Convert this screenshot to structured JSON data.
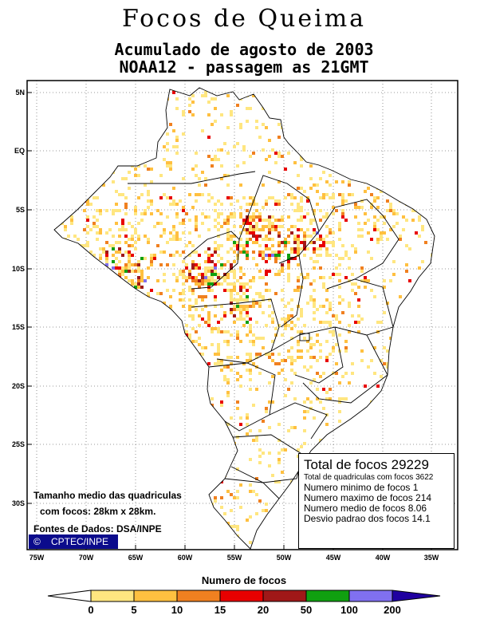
{
  "title": "Focos de Queima",
  "subtitle": "Acumulado de agosto de 2003",
  "satellite": "NOAA12 - passagem as 21GMT",
  "axes": {
    "lat_labels": [
      "5N",
      "EQ",
      "5S",
      "10S",
      "15S",
      "20S",
      "25S",
      "30S"
    ],
    "lon_labels": [
      "75W",
      "70W",
      "65W",
      "60W",
      "55W",
      "50W",
      "45W",
      "40W",
      "35W"
    ]
  },
  "stats": {
    "total": "Total de focos 29229",
    "quadriculas": "Total de quadriculas com focos 3622",
    "minimo": "Numero minimo de focos 1",
    "maximo": "Numero maximo de focos 214",
    "medio": "Numero medio de focos 8.06",
    "desvio": "Desvio padrao dos focos 14.1"
  },
  "notes": {
    "tamanho_line1": "Tamanho medio das quadriculas",
    "tamanho_line2": "com focos: 28km x 28km.",
    "fontes": "Fontes de Dados: DSA/INPE"
  },
  "badge": {
    "symbol": "©",
    "text": "CPTEC/INPE"
  },
  "legend": {
    "title": "Numero de focos",
    "labels": [
      "0",
      "5",
      "10",
      "15",
      "20",
      "50",
      "100",
      "200"
    ],
    "colors": [
      "#ffe680",
      "#ffc040",
      "#f08020",
      "#e80000",
      "#a01818",
      "#10a010",
      "#8070f0",
      "#2000a0"
    ]
  }
}
